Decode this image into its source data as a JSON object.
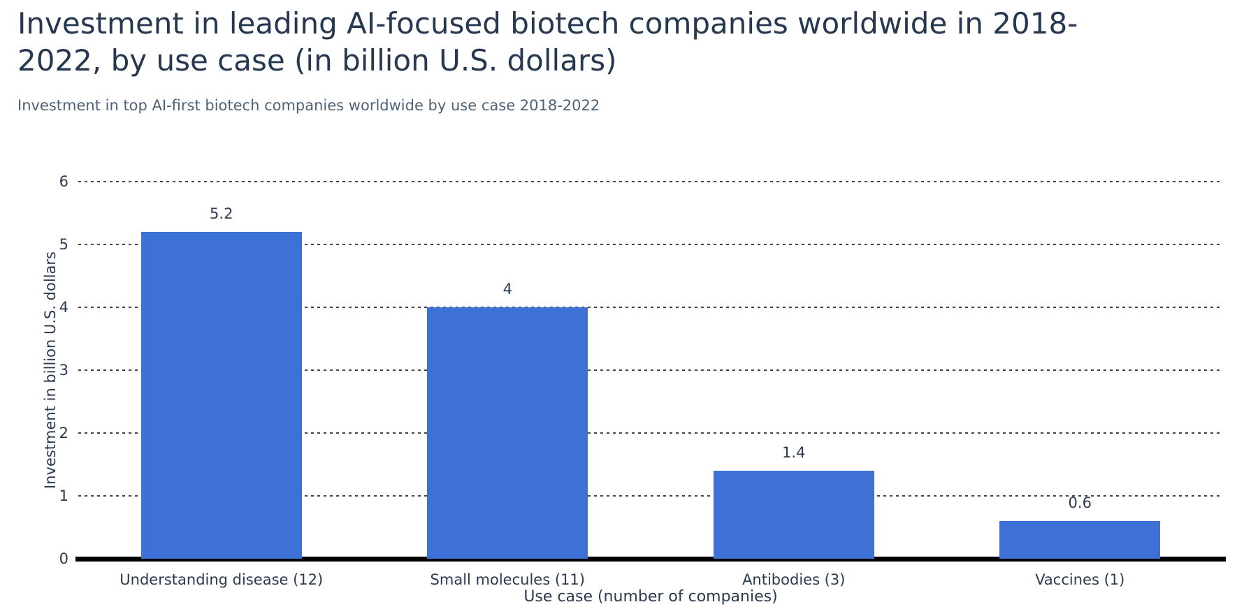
{
  "header": {
    "title_line1": "Investment in leading AI-focused biotech companies worldwide in 2018-",
    "title_line2": "2022, by use case (in billion U.S. dollars)",
    "subtitle": "Investment in top AI-first biotech companies worldwide by use case 2018-2022"
  },
  "colors": {
    "bar": "#3e71d6",
    "title_text": "#263750",
    "subtitle_text": "#4d6278",
    "axis_text": "#2b3a50",
    "gridline": "#3f444b",
    "baseline": "#000000",
    "background": "#ffffff"
  },
  "chart_data": {
    "type": "bar",
    "title": "Investment in leading AI-focused biotech companies worldwide in 2018-2022, by use case (in billion U.S. dollars)",
    "subtitle": "Investment in top AI-first biotech companies worldwide by use case 2018-2022",
    "categories": [
      "Understanding disease (12)",
      "Small molecules (11)",
      "Antibodies (3)",
      "Vaccines (1)"
    ],
    "values": [
      5.2,
      4,
      1.4,
      0.6
    ],
    "value_labels": [
      "5.2",
      "4",
      "1.4",
      "0.6"
    ],
    "xlabel": "Use case (number of companies)",
    "ylabel": "Investment in billion U.S. dollars",
    "ylim": [
      0,
      6
    ],
    "yticks": [
      0,
      1,
      2,
      3,
      4,
      5,
      6
    ],
    "grid": "horizontal-dashed",
    "legend": "none",
    "bar_color": "#3e71d6"
  }
}
